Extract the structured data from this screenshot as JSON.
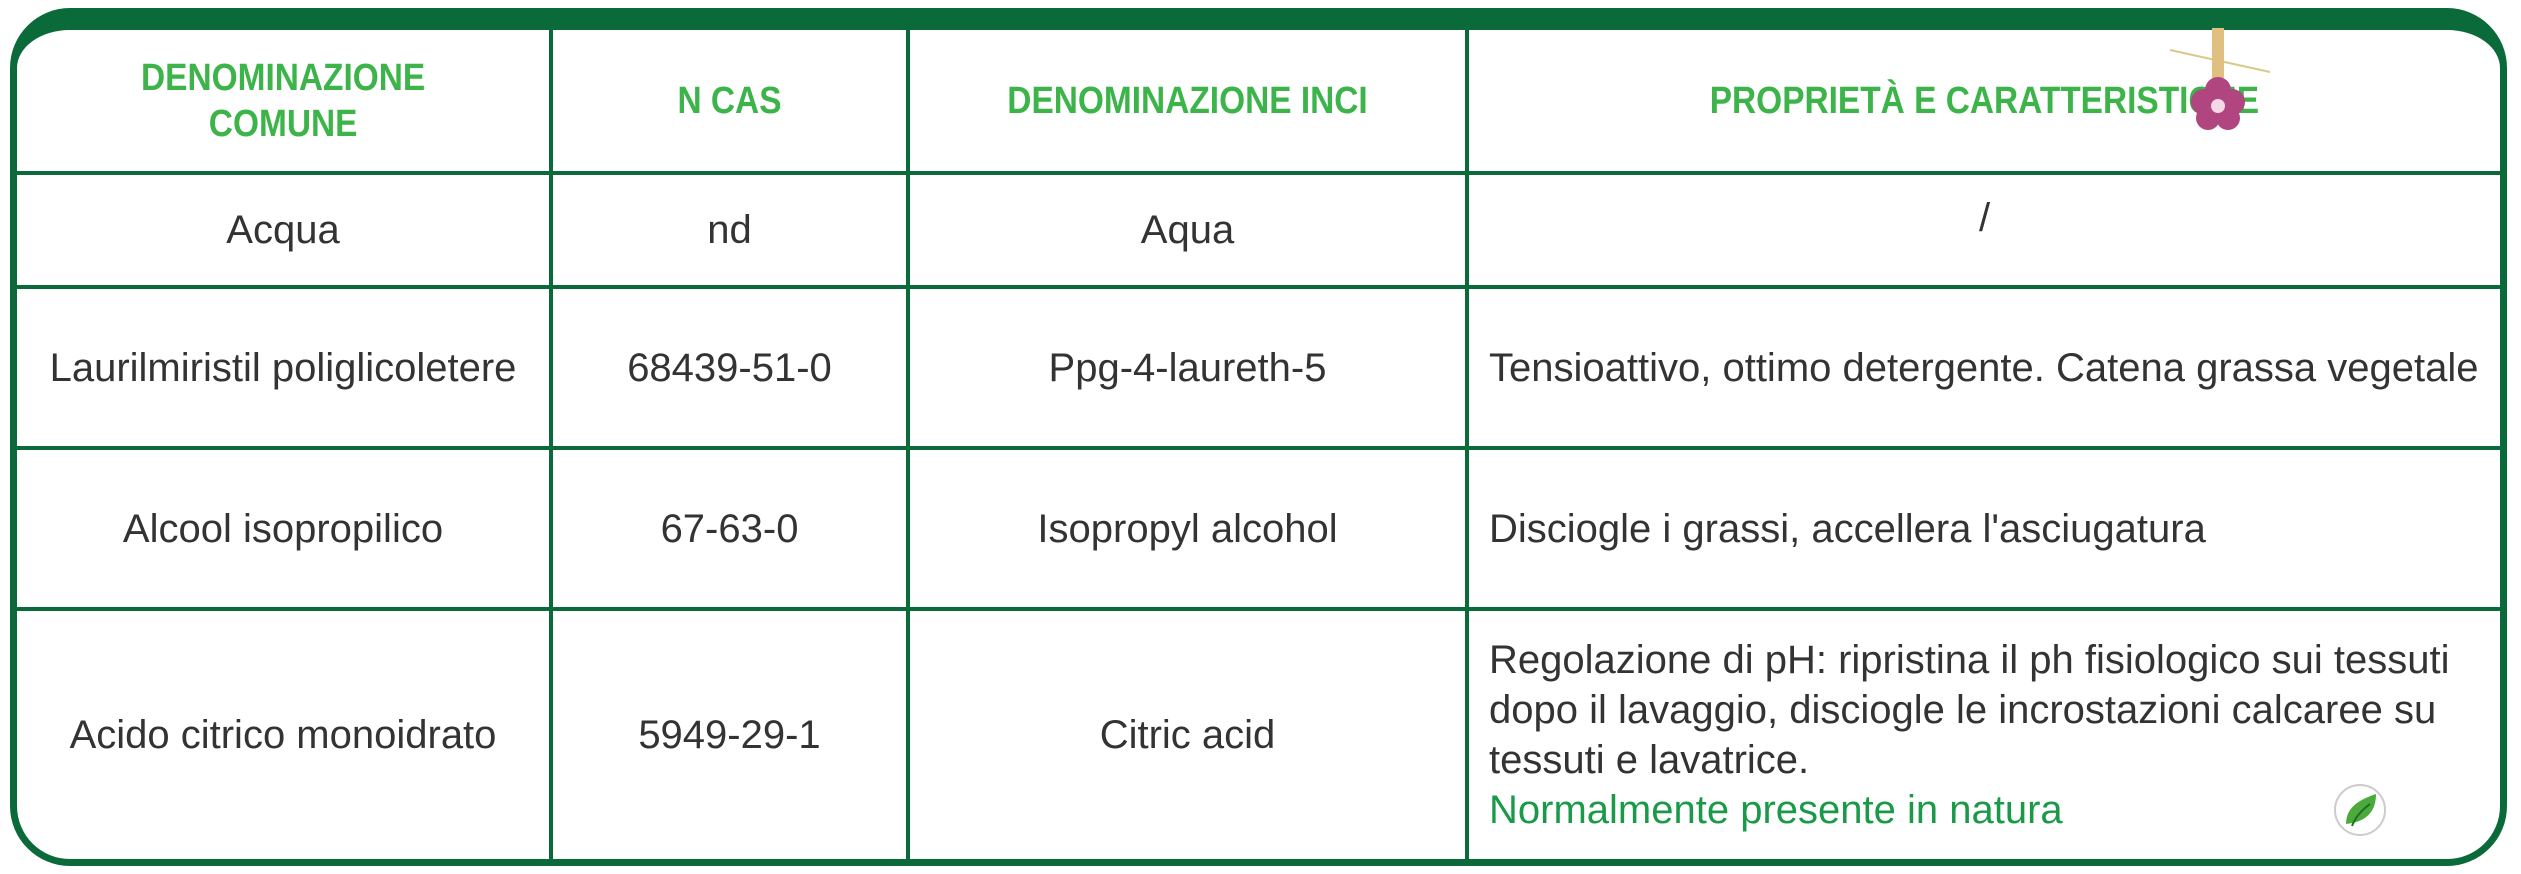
{
  "table": {
    "header": [
      "DENOMINAZIONE COMUNE",
      "N  CAS",
      "DENOMINAZIONE INCI",
      "PROPRIETÀ E CARATTERISTICHE"
    ],
    "rows": [
      [
        "Acqua",
        "nd",
        "Aqua",
        "/"
      ],
      [
        "Laurilmiristil poliglicoletere",
        "68439-51-0",
        "Ppg-4-laureth-5",
        "Tensioattivo, ottimo detergente. Catena grassa vegetale"
      ],
      [
        "Alcool isopropilico",
        "67-63-0",
        "Isopropyl alcohol",
        "Disciogle i grassi, accellera l'asciugatura"
      ],
      [
        "Acido citrico monoidrato",
        "5949-29-1",
        "Citric acid",
        "Regolazione di pH: ripristina il ph fisiologico sui tessuti dopo il lavaggio, disciogle le incrostazioni calcaree su tessuti e lavatrice."
      ]
    ],
    "note": "Normalmente presente in natura"
  }
}
